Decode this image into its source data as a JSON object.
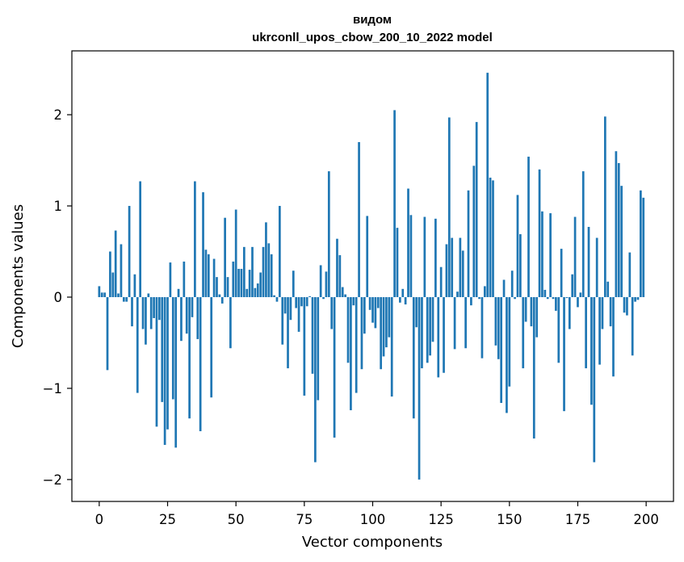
{
  "chart_data": {
    "type": "bar",
    "title": "видом",
    "subtitle": "ukrconll_upos_cbow_200_10_2022 model",
    "xlabel": "Vector components",
    "ylabel": "Components values",
    "xlim": [
      -10,
      210
    ],
    "ylim": [
      -2.24,
      2.7
    ],
    "xticks": [
      0,
      25,
      50,
      75,
      100,
      125,
      150,
      175,
      200
    ],
    "yticks": [
      -2,
      -1,
      0,
      1,
      2
    ],
    "ytick_labels": [
      "−2",
      "−1",
      "0",
      "1",
      "2"
    ],
    "grid": false,
    "color": "#1f77b4",
    "x": [
      0,
      1,
      2,
      3,
      4,
      5,
      6,
      7,
      8,
      9,
      10,
      11,
      12,
      13,
      14,
      15,
      16,
      17,
      18,
      19,
      20,
      21,
      22,
      23,
      24,
      25,
      26,
      27,
      28,
      29,
      30,
      31,
      32,
      33,
      34,
      35,
      36,
      37,
      38,
      39,
      40,
      41,
      42,
      43,
      44,
      45,
      46,
      47,
      48,
      49,
      50,
      51,
      52,
      53,
      54,
      55,
      56,
      57,
      58,
      59,
      60,
      61,
      62,
      63,
      64,
      65,
      66,
      67,
      68,
      69,
      70,
      71,
      72,
      73,
      74,
      75,
      76,
      77,
      78,
      79,
      80,
      81,
      82,
      83,
      84,
      85,
      86,
      87,
      88,
      89,
      90,
      91,
      92,
      93,
      94,
      95,
      96,
      97,
      98,
      99,
      100,
      101,
      102,
      103,
      104,
      105,
      106,
      107,
      108,
      109,
      110,
      111,
      112,
      113,
      114,
      115,
      116,
      117,
      118,
      119,
      120,
      121,
      122,
      123,
      124,
      125,
      126,
      127,
      128,
      129,
      130,
      131,
      132,
      133,
      134,
      135,
      136,
      137,
      138,
      139,
      140,
      141,
      142,
      143,
      144,
      145,
      146,
      147,
      148,
      149,
      150,
      151,
      152,
      153,
      154,
      155,
      156,
      157,
      158,
      159,
      160,
      161,
      162,
      163,
      164,
      165,
      166,
      167,
      168,
      169,
      170,
      171,
      172,
      173,
      174,
      175,
      176,
      177,
      178,
      179,
      180,
      181,
      182,
      183,
      184,
      185,
      186,
      187,
      188,
      189,
      190,
      191,
      192,
      193,
      194,
      195,
      196,
      197,
      198,
      199
    ],
    "values": [
      0.12,
      0.05,
      0.05,
      -0.8,
      0.5,
      0.27,
      0.73,
      0.04,
      0.58,
      -0.05,
      -0.05,
      1.0,
      -0.32,
      0.25,
      -1.05,
      1.27,
      -0.35,
      -0.52,
      0.04,
      -0.35,
      -0.23,
      -1.42,
      -0.25,
      -1.15,
      -1.62,
      -1.45,
      0.38,
      -1.12,
      -1.65,
      0.09,
      -0.48,
      0.39,
      -0.4,
      -1.33,
      -0.22,
      1.27,
      -0.46,
      -1.47,
      1.15,
      0.52,
      0.47,
      -1.1,
      0.42,
      0.22,
      0.03,
      -0.07,
      0.87,
      0.22,
      -0.56,
      0.39,
      0.96,
      0.31,
      0.31,
      0.55,
      0.09,
      0.3,
      0.55,
      0.1,
      0.15,
      0.27,
      0.55,
      0.82,
      0.59,
      0.47,
      0.02,
      -0.05,
      1.0,
      -0.52,
      -0.18,
      -0.78,
      -0.25,
      0.29,
      -0.12,
      -0.38,
      -0.1,
      -1.08,
      -0.1,
      0.01,
      -0.84,
      -1.81,
      -1.13,
      0.35,
      -0.02,
      0.28,
      1.38,
      -0.35,
      -1.54,
      0.64,
      0.46,
      0.11,
      0.03,
      -0.72,
      -1.24,
      -0.09,
      -1.05,
      1.7,
      -0.79,
      -0.4,
      0.89,
      -0.14,
      -0.28,
      -0.34,
      -0.12,
      -0.79,
      -0.65,
      -0.55,
      -0.44,
      -1.09,
      2.05,
      0.76,
      -0.06,
      0.09,
      -0.08,
      1.19,
      0.9,
      -1.33,
      -0.33,
      -2.0,
      -0.78,
      0.88,
      -0.72,
      -0.64,
      -0.49,
      0.86,
      -0.88,
      0.33,
      -0.83,
      0.58,
      1.97,
      0.65,
      -0.57,
      0.06,
      0.65,
      0.51,
      -0.56,
      1.17,
      -0.09,
      1.44,
      1.92,
      -0.02,
      -0.67,
      0.12,
      2.46,
      1.31,
      1.28,
      -0.53,
      -0.68,
      -1.16,
      0.19,
      -1.27,
      -0.98,
      0.29,
      -0.02,
      1.12,
      0.69,
      -0.78,
      -0.27,
      1.54,
      -0.32,
      -1.55,
      -0.44,
      1.4,
      0.94,
      0.08,
      -0.02,
      0.92,
      -0.02,
      -0.15,
      -0.72,
      0.53,
      -1.25,
      -0.01,
      -0.35,
      0.25,
      0.88,
      -0.11,
      0.05,
      1.38,
      -0.78,
      0.77,
      -1.18,
      -1.81,
      0.65,
      -0.74,
      -0.35,
      1.98,
      0.17,
      -0.32,
      -0.87,
      1.6,
      1.47,
      1.22,
      -0.17,
      -0.2,
      0.49,
      -0.64,
      -0.05,
      -0.03,
      1.17,
      1.09
    ]
  }
}
